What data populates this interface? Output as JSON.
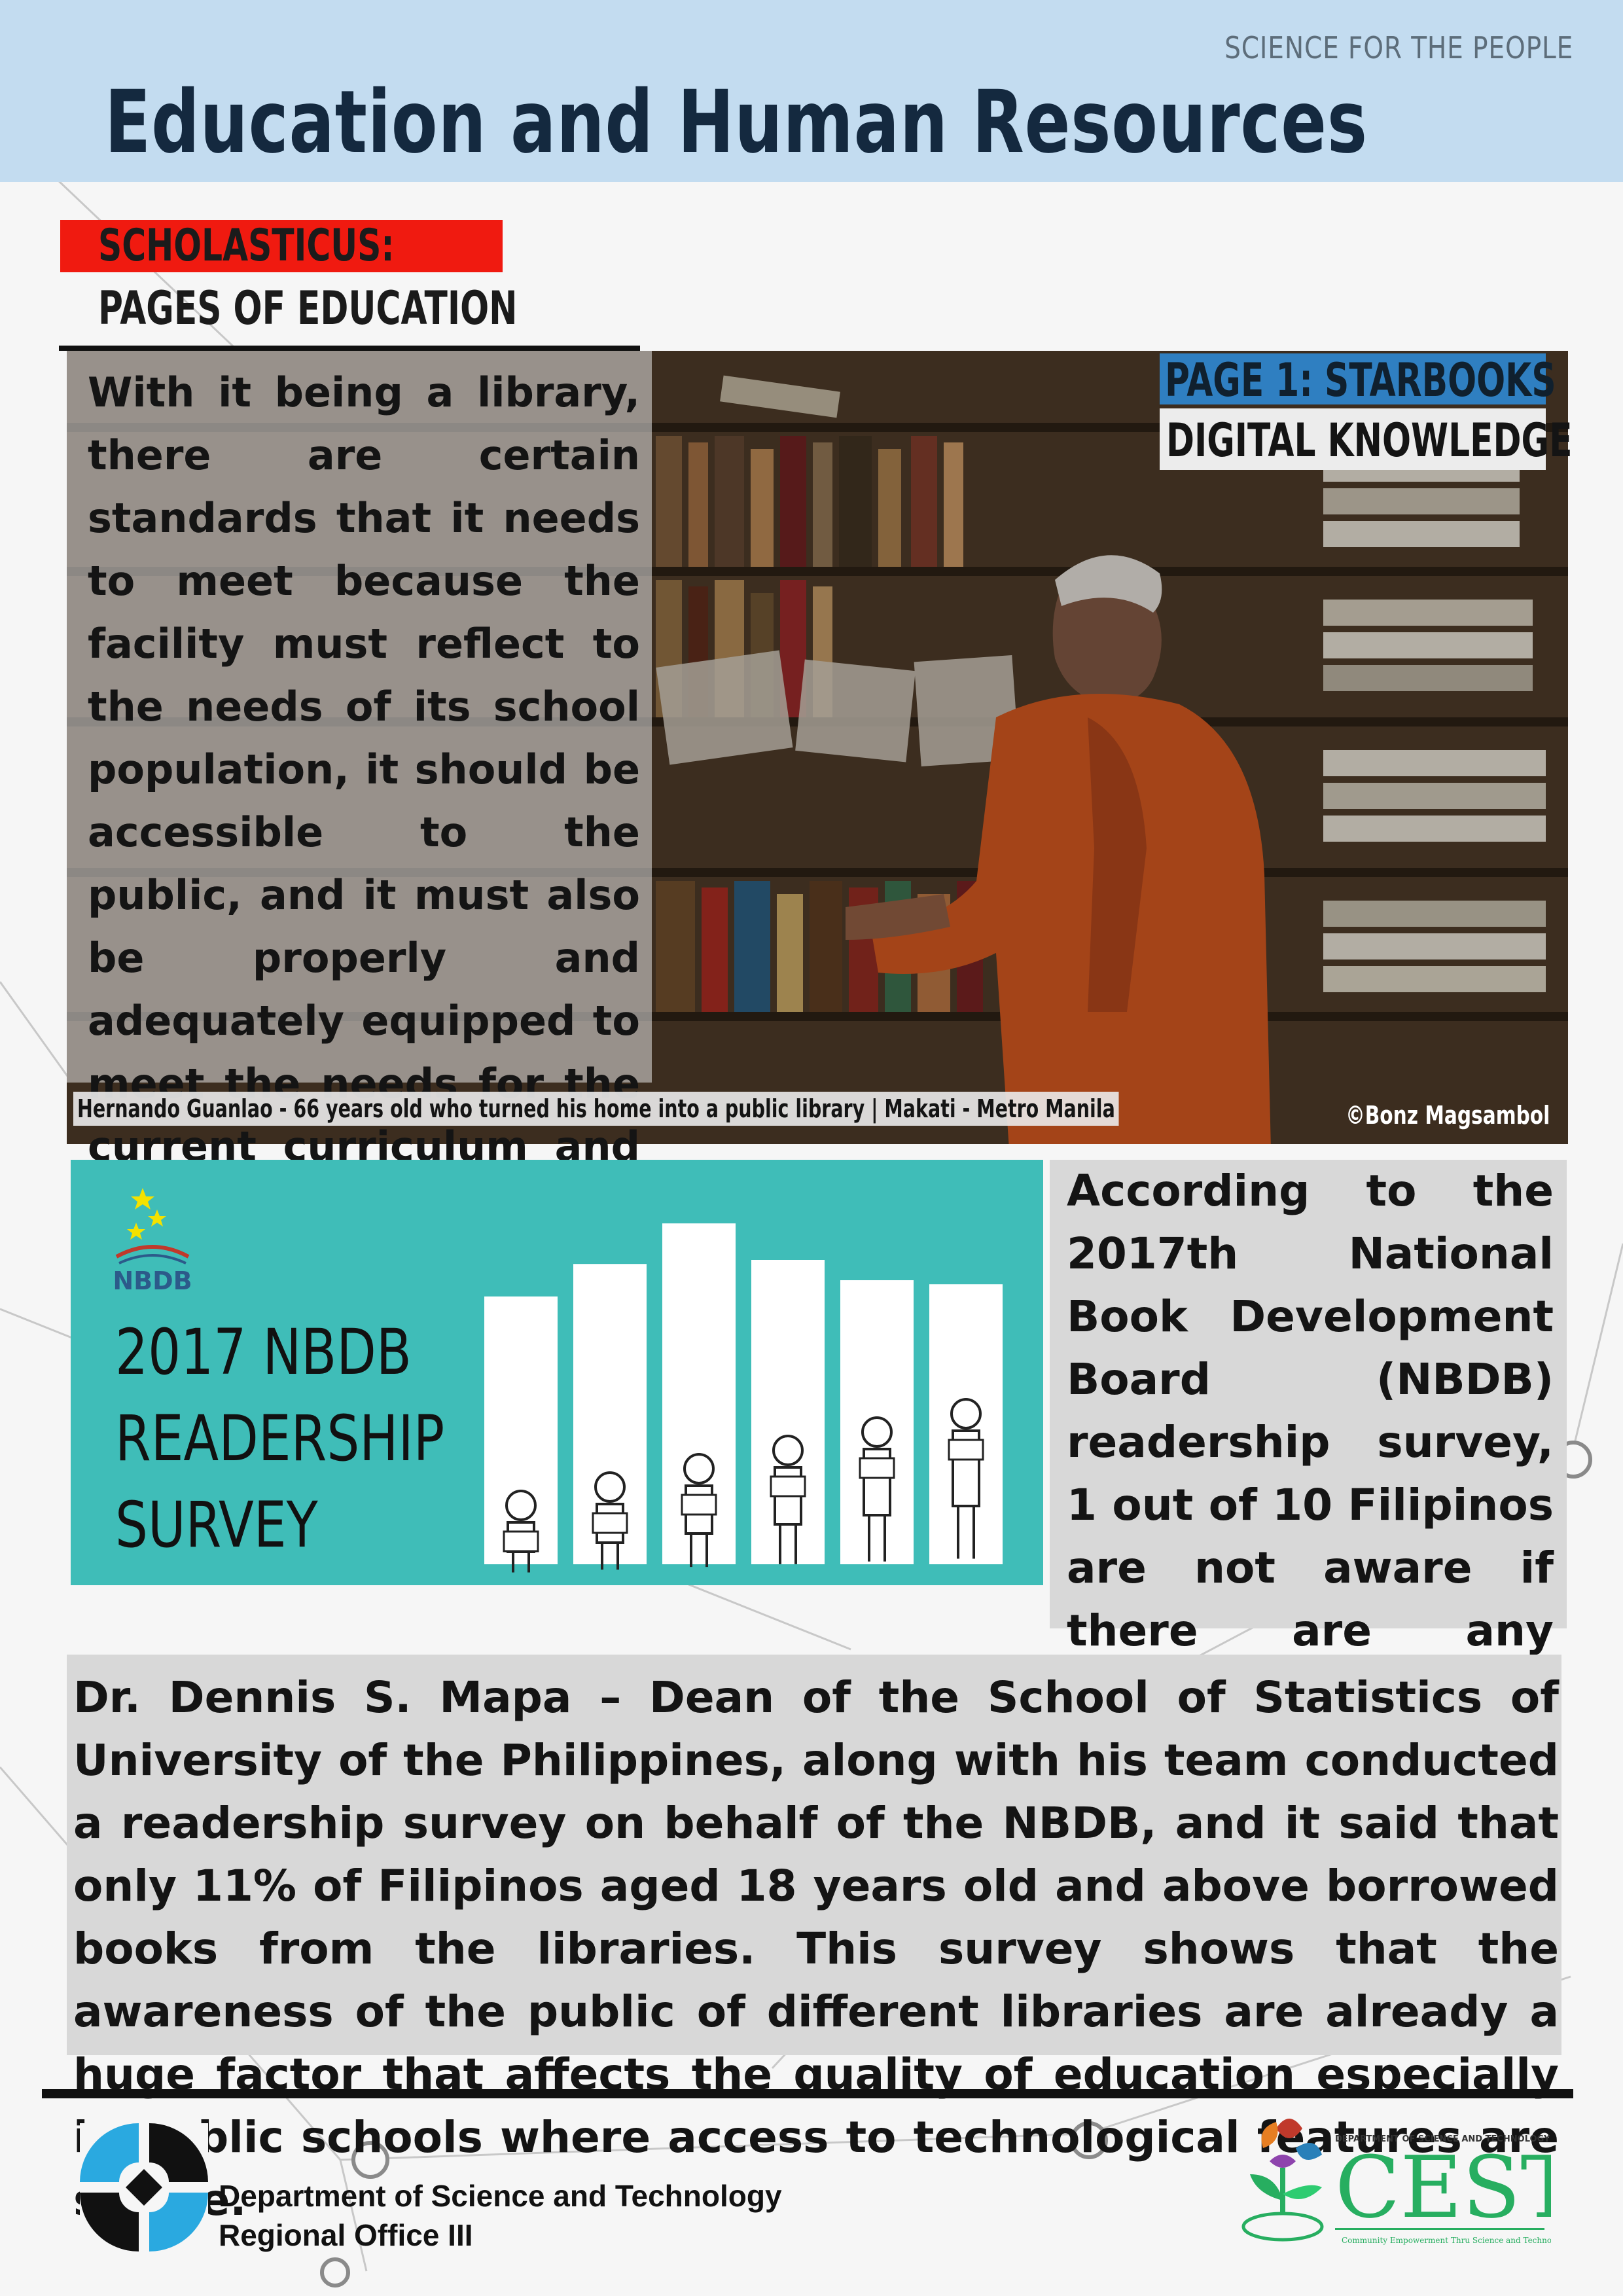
{
  "header": {
    "kicker": "SCIENCE FOR THE PEOPLE",
    "title": "Education and Human Resources"
  },
  "section": {
    "tag": "SCHOLASTICUS:",
    "subtitle": "PAGES OF EDUCATION"
  },
  "feature": {
    "intro": "With it being a library, there are certain standards that it needs to meet because the facility must reflect to the needs of its school population, it should be accessible to the public, and it must also be properly and adequately equipped to meet the needs for the current curriculum and the users.",
    "page_label_1": "PAGE 1: STARBOOKS",
    "page_label_2": "DIGITAL KNOWLEDGE",
    "caption": "Hernando Guanlao - 66 years old who turned his home into a public library | Makati - Metro Manila",
    "credit": "©Bonz Magsambol"
  },
  "survey_card": {
    "logo_text": "NBDB",
    "title_line1": "2017 NBDB",
    "title_line2": "READERSHIP",
    "title_line3": "SURVEY",
    "bar_levels": [
      0.66,
      0.74,
      0.84,
      0.75,
      0.7,
      0.69
    ]
  },
  "aside": {
    "text": "According to the 2017th National Book Development Board (NBDB) readership survey, 1 out of 10 Filipinos are not aware if there are any nearby library in their neighborhood."
  },
  "body": {
    "text": "Dr. Dennis S. Mapa – Dean of the School of Statistics of University of the Philippines, along with his team conducted a readership survey on behalf of the NBDB, and it said that only 11% of Filipinos aged 18 years old and above borrowed books from the libraries. This survey shows that the awareness of the public of different libraries are already a huge factor that affects the quality of education especially in public schools where access to technological features are scarce."
  },
  "footer": {
    "org_line1": "Department of Science and Technology",
    "org_line2": "Regional Office III",
    "cest_text": "CEST",
    "cest_top": "DEPARTMENT OF SCIENCE AND TECHNOLOGY",
    "cest_tagline": "Community Empowerment Thru Science and Technology"
  },
  "colors": {
    "header_band": "#c3dcf0",
    "title": "#14293f",
    "section_tag": "#f01a10",
    "page_label": "#2f7fc1",
    "survey_card": "#3fbdb8",
    "panel_gray": "#d8d8d8"
  }
}
